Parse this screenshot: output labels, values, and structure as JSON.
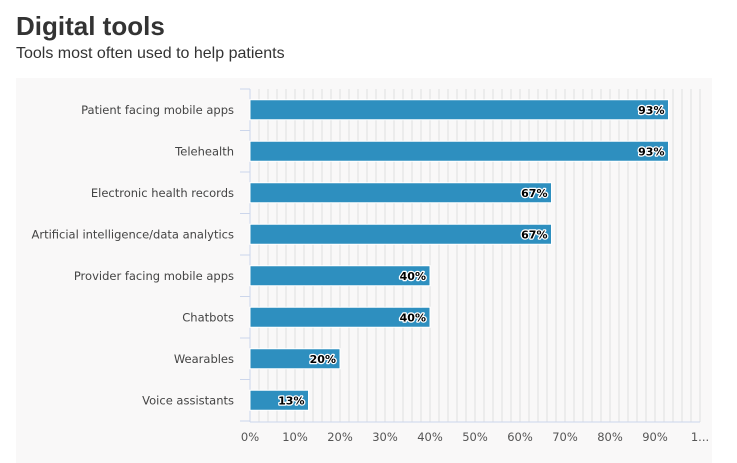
{
  "header": {
    "title": "Digital tools",
    "subtitle": "Tools most often used to help patients"
  },
  "colors": {
    "bar": "#2e8fbf",
    "grid": "#e0e0e0",
    "panel_background": "#f9f8f8"
  },
  "chart_data": {
    "type": "bar",
    "orientation": "horizontal",
    "title": "Digital tools",
    "subtitle": "Tools most often used to help patients",
    "categories": [
      "Patient facing mobile apps",
      "Telehealth",
      "Electronic health records",
      "Artificial intelligence/data analytics",
      "Provider facing mobile apps",
      "Chatbots",
      "Wearables",
      "Voice assistants"
    ],
    "values": [
      93,
      93,
      67,
      67,
      40,
      40,
      20,
      13
    ],
    "data_labels": [
      "93%",
      "93%",
      "67%",
      "67%",
      "40%",
      "40%",
      "20%",
      "13%"
    ],
    "x_ticks": [
      "0%",
      "10%",
      "20%",
      "30%",
      "40%",
      "50%",
      "60%",
      "70%",
      "80%",
      "90%",
      "1..."
    ],
    "xlim": [
      0,
      100
    ],
    "grid": true,
    "legend": false
  }
}
